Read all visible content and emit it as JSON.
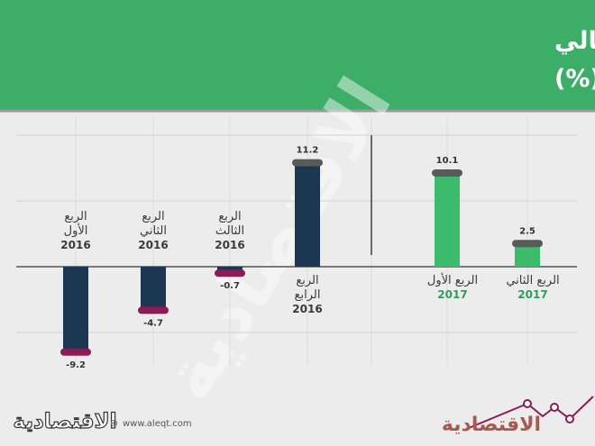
{
  "chart_data": {
    "type": "bar",
    "title": "معدلات نمو الناتج المحلي الإجمالي بالأسعار الجارية ربعيا (%)",
    "title_lines": [
      "معدلات نمو الناتج المحلي الإجمالي",
      "بالأسعار الجارية ربعيا (%)"
    ],
    "groups": [
      {
        "year": "2016",
        "quarters": [
          {
            "label_lines": [
              "الربع",
              "الأول"
            ],
            "year": "2016",
            "value": -9.2,
            "value_label": "-9.2"
          },
          {
            "label_lines": [
              "الربع",
              "الثاني"
            ],
            "year": "2016",
            "value": -4.7,
            "value_label": "-4.7"
          },
          {
            "label_lines": [
              "الربع",
              "الثالث"
            ],
            "year": "2016",
            "value": -0.7,
            "value_label": "-0.7"
          },
          {
            "label_lines": [
              "الربع",
              "الرابع"
            ],
            "year": "2016",
            "value": 11.2,
            "value_label": "11.2"
          }
        ]
      },
      {
        "year": "2017",
        "quarters": [
          {
            "label_lines": [
              "الربع الأول"
            ],
            "year": "2017",
            "value": 10.1,
            "value_label": "10.1"
          },
          {
            "label_lines": [
              "الربع الثاني"
            ],
            "year": "2017",
            "value": 2.5,
            "value_label": "2.5"
          }
        ]
      }
    ],
    "ylim": [
      -9.2,
      11.2
    ]
  },
  "colors": {
    "header": "#3dae67",
    "bar_2016": "#1c3752",
    "cap_2016_negative": "#8b1a56",
    "bar_2017": "#3dbb6c",
    "cap_positive": "#5a5a5a",
    "label_2016": "#3a3a3a",
    "label_2017": "#2e9c5b"
  },
  "footer": {
    "website": "www.aleqt.com",
    "logo_text": "الاقتصادية",
    "watermark_text": "الاقتصادية"
  }
}
